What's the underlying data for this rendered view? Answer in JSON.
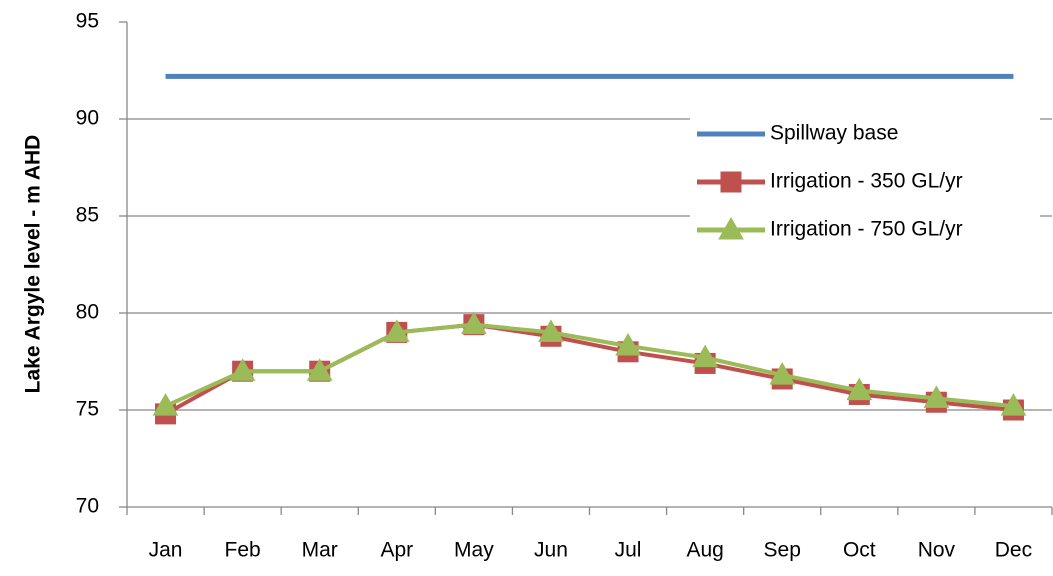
{
  "chart_data": {
    "type": "line",
    "y_label": "Lake Argyle level - m AHD",
    "categories": [
      "Jan",
      "Feb",
      "Mar",
      "Apr",
      "May",
      "Jun",
      "Jul",
      "Aug",
      "Sep",
      "Oct",
      "Nov",
      "Dec"
    ],
    "series": [
      {
        "name": "Spillway base",
        "color": "#4f81bd",
        "marker": "none",
        "values": [
          92.2,
          92.2,
          92.2,
          92.2,
          92.2,
          92.2,
          92.2,
          92.2,
          92.2,
          92.2,
          92.2,
          92.2
        ]
      },
      {
        "name": "Irrigation - 350 GL/yr",
        "color": "#c0504d",
        "marker": "square",
        "values": [
          74.8,
          77.0,
          77.0,
          79.0,
          79.4,
          78.8,
          78.0,
          77.4,
          76.6,
          75.8,
          75.4,
          75.0
        ]
      },
      {
        "name": "Irrigation - 750 GL/yr",
        "color": "#9bbb59",
        "marker": "triangle",
        "values": [
          75.2,
          77.0,
          77.0,
          79.0,
          79.4,
          79.0,
          78.3,
          77.7,
          76.8,
          76.0,
          75.6,
          75.2
        ]
      }
    ],
    "ylim": [
      70,
      95
    ],
    "yticks": [
      70,
      75,
      80,
      85,
      90,
      95
    ],
    "grid": true,
    "legend": "upper right"
  }
}
